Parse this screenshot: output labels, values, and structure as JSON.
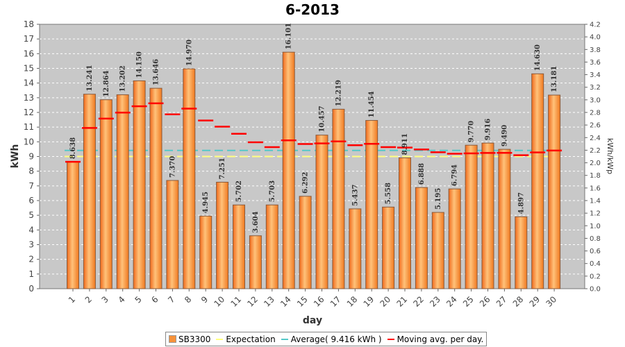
{
  "chart_data": {
    "type": "bar",
    "title": "6-2013",
    "xlabel": "day",
    "ylabel": "kWh",
    "ylabel_right": "kWh/kWp",
    "ylim": [
      0,
      18
    ],
    "y_right_lim": [
      0,
      4.2
    ],
    "y_ticks": [
      0,
      1,
      2,
      3,
      4,
      5,
      6,
      7,
      8,
      9,
      10,
      11,
      12,
      13,
      14,
      15,
      16,
      17,
      18
    ],
    "y_right_ticks": [
      "0.0",
      "0.2",
      "0.4",
      "0.6",
      "0.8",
      "1.0",
      "1.2",
      "1.4",
      "1.6",
      "1.8",
      "2.0",
      "2.2",
      "2.4",
      "2.6",
      "2.8",
      "3.0",
      "3.2",
      "3.4",
      "3.6",
      "3.8",
      "4.0",
      "4.2"
    ],
    "categories": [
      "1",
      "2",
      "3",
      "4",
      "5",
      "6",
      "7",
      "8",
      "9",
      "10",
      "11",
      "12",
      "13",
      "14",
      "15",
      "16",
      "17",
      "18",
      "19",
      "20",
      "21",
      "22",
      "23",
      "24",
      "25",
      "26",
      "27",
      "28",
      "29",
      "30"
    ],
    "series": [
      {
        "name": "SB3300",
        "color": "#f7923a",
        "values": [
          8.638,
          13.241,
          12.864,
          13.202,
          14.15,
          13.646,
          7.37,
          14.97,
          4.945,
          7.251,
          5.702,
          3.604,
          5.703,
          16.101,
          6.292,
          10.457,
          12.219,
          5.437,
          11.454,
          5.558,
          8.911,
          6.888,
          5.195,
          6.794,
          9.77,
          9.916,
          9.49,
          4.897,
          14.63,
          13.181
        ],
        "labels": [
          "8.638",
          "13.241",
          "12.864",
          "13.202",
          "14.150",
          "13.646",
          "7.370",
          "14.970",
          "4.945",
          "7.251",
          "5.702",
          "3.604",
          "5.703",
          "16.101",
          "6.292",
          "10.457",
          "12.219",
          "5.437",
          "11.454",
          "5.558",
          "8.911",
          "6.888",
          "5.195",
          "6.794",
          "9.770",
          "9.916",
          "9.490",
          "4.897",
          "14.630",
          "13.181"
        ]
      },
      {
        "name": "Expectation",
        "color": "#ffff80",
        "constant": 9.0
      },
      {
        "name": "Average( 9.416 kWh )",
        "color": "#55c8c8",
        "constant": 9.416
      },
      {
        "name": "Moving avg. per day.",
        "color": "#ff0000",
        "values": [
          8.638,
          10.94,
          11.58,
          11.99,
          12.42,
          12.62,
          11.87,
          12.26,
          11.45,
          11.03,
          10.55,
          9.97,
          9.64,
          10.1,
          9.85,
          9.89,
          10.03,
          9.77,
          9.86,
          9.64,
          9.61,
          9.48,
          9.29,
          9.19,
          9.21,
          9.24,
          9.25,
          9.09,
          9.28,
          9.41
        ]
      }
    ],
    "legend_position": "bottom",
    "grid": true
  }
}
